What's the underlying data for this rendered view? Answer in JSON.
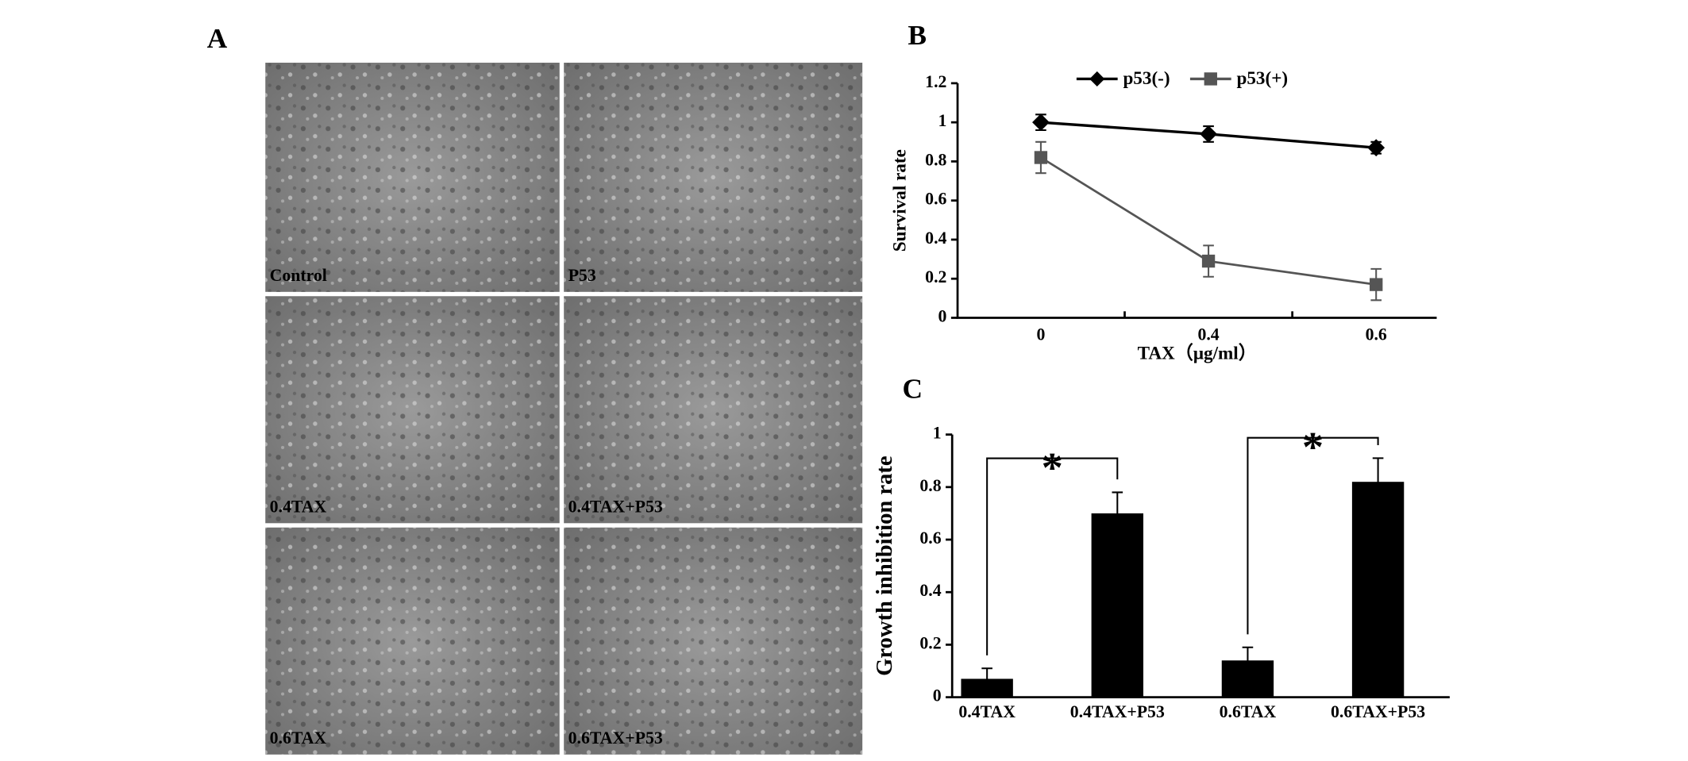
{
  "panel_a": {
    "label": "A",
    "images": [
      "Control",
      "P53",
      "0.4TAX",
      "0.4TAX+P53",
      "0.6TAX",
      "0.6TAX+P53"
    ]
  },
  "chart_data": [
    {
      "type": "line",
      "label": "B",
      "y_label": "Survival rate",
      "x_label": "TAX（μg/ml）",
      "categories": [
        "0",
        "0.4",
        "0.6"
      ],
      "series": [
        {
          "name": "p53(-)",
          "color": "#000000",
          "marker": "diamond",
          "values": [
            1,
            0.94,
            0.87
          ],
          "errors": [
            0.04,
            0.04,
            0.03
          ]
        },
        {
          "name": "p53(+)",
          "color": "#555555",
          "marker": "square",
          "values": [
            0.82,
            0.29,
            0.17
          ],
          "errors": [
            0.08,
            0.08,
            0.08
          ]
        }
      ],
      "ylim": [
        0,
        1.2
      ],
      "yticks": [
        0,
        0.2,
        0.4,
        0.6,
        0.8,
        1,
        1.2
      ],
      "legend": "top"
    },
    {
      "type": "bar",
      "label": "C",
      "y_label": "Growth inhibition rate",
      "categories": [
        "0.4TAX",
        "0.4TAX+P53",
        "0.6TAX",
        "0.6TAX+P53"
      ],
      "values": [
        0.07,
        0.7,
        0.14,
        0.82
      ],
      "errors": [
        0.04,
        0.08,
        0.05,
        0.09
      ],
      "color": "#000000",
      "annotations": [
        "*",
        "*"
      ],
      "ylim": [
        0,
        1
      ],
      "yticks": [
        0,
        0.2,
        0.4,
        0.6,
        0.8,
        1
      ]
    }
  ]
}
